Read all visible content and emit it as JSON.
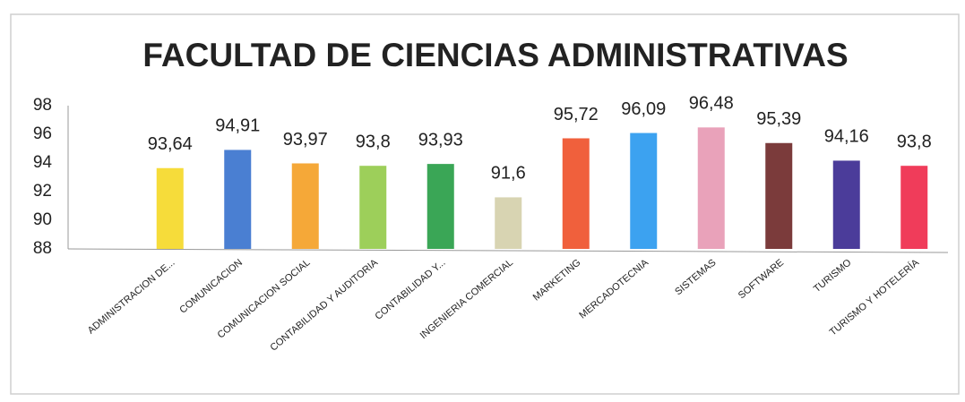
{
  "chart_data": {
    "type": "bar",
    "title": "FACULTAD DE CIENCIAS ADMINISTRATIVAS",
    "categories": [
      "ADMINISTRACION DE...",
      "COMUNICACION",
      "COMUNICACION SOCIAL",
      "CONTABILIDAD Y AUDITORIA",
      "CONTABILIDAD Y...",
      "INGENIERIA COMERCIAL",
      "MARKETING",
      "MERCADOTECNIA",
      "SISTEMAS",
      "SOFTWARE",
      "TURISMO",
      "TURISMO Y HOTELERÍA"
    ],
    "values": [
      93.64,
      94.91,
      93.97,
      93.8,
      93.93,
      91.6,
      95.72,
      96.09,
      96.48,
      95.39,
      94.16,
      93.8
    ],
    "value_labels": [
      "93,64",
      "94,91",
      "93,97",
      "93,8",
      "93,93",
      "91,6",
      "95,72",
      "96,09",
      "96,48",
      "95,39",
      "94,16",
      "93,8"
    ],
    "colors": [
      "#f6dc3a",
      "#4a7fd2",
      "#f5a838",
      "#9dcf5a",
      "#3aa656",
      "#d8d4b2",
      "#f0603c",
      "#3ca2f0",
      "#e9a2ba",
      "#7b3b3b",
      "#4b3c9a",
      "#f03c5a"
    ],
    "ylim": [
      88,
      98
    ],
    "yticks": [
      88,
      90,
      92,
      94,
      96,
      98
    ],
    "grid": false
  }
}
